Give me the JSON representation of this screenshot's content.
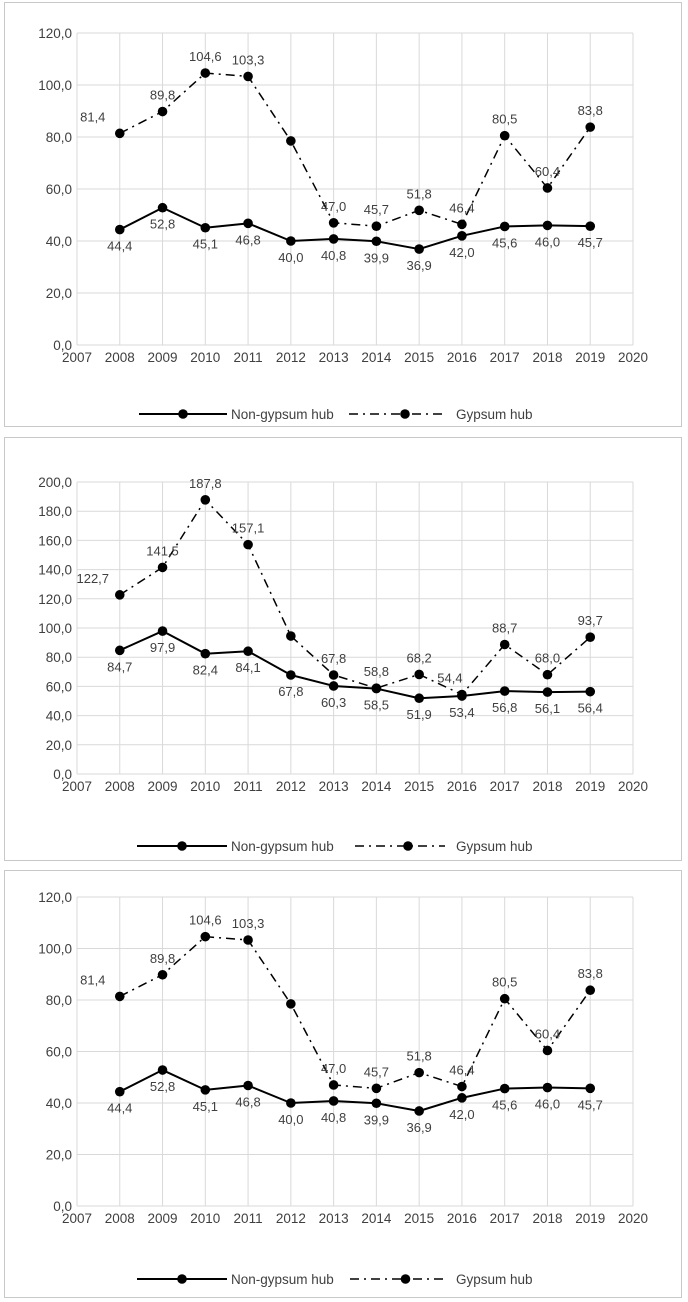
{
  "chart_data": [
    {
      "type": "line",
      "x": [
        2008,
        2009,
        2010,
        2011,
        2012,
        2013,
        2014,
        2015,
        2016,
        2017,
        2018,
        2019
      ],
      "xlim": [
        2007,
        2020
      ],
      "x_ticks": [
        "2007",
        "2008",
        "2009",
        "2010",
        "2011",
        "2012",
        "2013",
        "2014",
        "2015",
        "2016",
        "2017",
        "2018",
        "2019",
        "2020"
      ],
      "ylim": [
        0,
        120
      ],
      "y_ticks": [
        "0,0",
        "20,0",
        "40,0",
        "60,0",
        "80,0",
        "100,0",
        "120,0"
      ],
      "grid": true,
      "legend": "bottom",
      "series": [
        {
          "name": "Non-gypsum hub",
          "style": "solid",
          "values": [
            44.4,
            52.8,
            45.1,
            46.8,
            40.0,
            40.8,
            39.9,
            36.9,
            42.0,
            45.6,
            46.0,
            45.7
          ],
          "labels": [
            "44,4",
            "52,8",
            "45,1",
            "46,8",
            "40,0",
            "40,8",
            "39,9",
            "36,9",
            "42,0",
            "45,6",
            "46,0",
            "45,7"
          ]
        },
        {
          "name": "Gypsum hub",
          "style": "dashdot",
          "values": [
            81.4,
            89.8,
            104.6,
            103.3,
            78.5,
            47.0,
            45.7,
            51.8,
            46.4,
            80.5,
            60.4,
            83.8
          ],
          "labels": [
            "81,4",
            "89,8",
            "104,6",
            "103,3",
            "",
            "47,0",
            "45,7",
            "51,8",
            "46,4",
            "80,5",
            "60,4",
            "83,8"
          ]
        }
      ]
    },
    {
      "type": "line",
      "x": [
        2008,
        2009,
        2010,
        2011,
        2012,
        2013,
        2014,
        2015,
        2016,
        2017,
        2018,
        2019
      ],
      "xlim": [
        2007,
        2020
      ],
      "x_ticks": [
        "2007",
        "2008",
        "2009",
        "2010",
        "2011",
        "2012",
        "2013",
        "2014",
        "2015",
        "2016",
        "2017",
        "2018",
        "2019",
        "2020"
      ],
      "ylim": [
        0,
        200
      ],
      "y_ticks": [
        "0,0",
        "20,0",
        "40,0",
        "60,0",
        "80,0",
        "100,0",
        "120,0",
        "140,0",
        "160,0",
        "180,0",
        "200,0"
      ],
      "grid": true,
      "legend": "bottom",
      "series": [
        {
          "name": "Non-gypsum hub",
          "style": "solid",
          "values": [
            84.7,
            97.9,
            82.4,
            84.1,
            67.8,
            60.3,
            58.5,
            51.9,
            53.4,
            56.8,
            56.1,
            56.4
          ],
          "labels": [
            "84,7",
            "97,9",
            "82,4",
            "84,1",
            "67,8",
            "60,3",
            "58,5",
            "51,9",
            "53,4",
            "56,8",
            "56,1",
            "56,4"
          ]
        },
        {
          "name": "Gypsum hub",
          "style": "dashdot",
          "values": [
            122.7,
            141.5,
            187.8,
            157.1,
            94.5,
            67.8,
            58.8,
            68.2,
            54.4,
            88.7,
            68.0,
            93.7
          ],
          "labels": [
            "122,7",
            "141,5",
            "187,8",
            "157,1",
            "",
            "67,8",
            "58,8",
            "68,2",
            "54,4",
            "88,7",
            "68,0",
            "93,7"
          ]
        }
      ]
    },
    {
      "type": "line",
      "x": [
        2008,
        2009,
        2010,
        2011,
        2012,
        2013,
        2014,
        2015,
        2016,
        2017,
        2018,
        2019
      ],
      "xlim": [
        2007,
        2020
      ],
      "x_ticks": [
        "2007",
        "2008",
        "2009",
        "2010",
        "2011",
        "2012",
        "2013",
        "2014",
        "2015",
        "2016",
        "2017",
        "2018",
        "2019",
        "2020"
      ],
      "ylim": [
        0,
        120
      ],
      "y_ticks": [
        "0,0",
        "20,0",
        "40,0",
        "60,0",
        "80,0",
        "100,0",
        "120,0"
      ],
      "grid": true,
      "legend": "bottom",
      "series": [
        {
          "name": "Non-gypsum hub",
          "style": "solid",
          "values": [
            44.4,
            52.8,
            45.1,
            46.8,
            40.0,
            40.8,
            39.9,
            36.9,
            42.0,
            45.6,
            46.0,
            45.7
          ],
          "labels": [
            "44,4",
            "52,8",
            "45,1",
            "46,8",
            "40,0",
            "40,8",
            "39,9",
            "36,9",
            "42,0",
            "45,6",
            "46,0",
            "45,7"
          ]
        },
        {
          "name": "Gypsum hub",
          "style": "dashdot",
          "values": [
            81.4,
            89.8,
            104.6,
            103.3,
            78.5,
            47.0,
            45.7,
            51.8,
            46.4,
            80.5,
            60.4,
            83.8
          ],
          "labels": [
            "81,4",
            "89,8",
            "104,6",
            "103,3",
            "",
            "47,0",
            "45,7",
            "51,8",
            "46,4",
            "80,5",
            "60,4",
            "83,8"
          ]
        }
      ]
    }
  ],
  "colors": {
    "line": "#000000",
    "grid": "#d9d9d9",
    "text": "#404040",
    "border": "#c8c8c8"
  }
}
